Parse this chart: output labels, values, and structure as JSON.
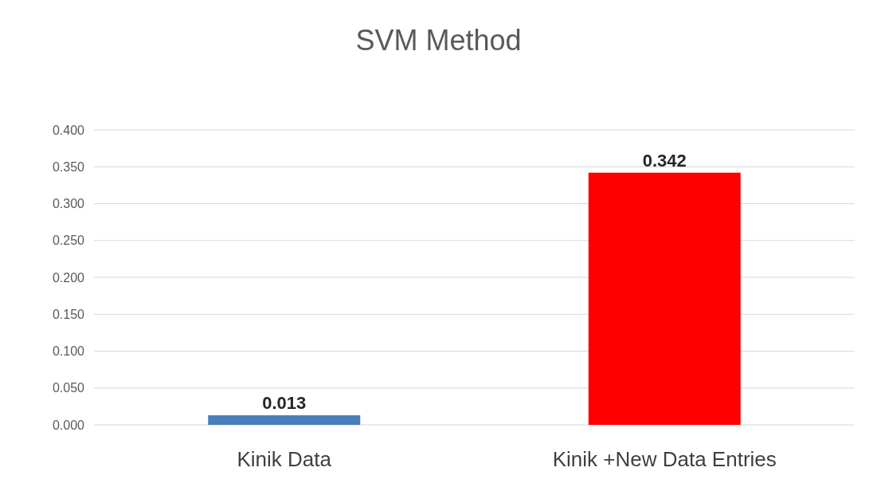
{
  "chart_data": {
    "type": "bar",
    "title": "SVM Method",
    "categories": [
      "Kinik Data",
      "Kinik +New Data Entries"
    ],
    "values": [
      0.013,
      0.342
    ],
    "colors": [
      "#4a7ebb",
      "#ff0000"
    ],
    "ylim": [
      0,
      0.4
    ],
    "yticks": [
      {
        "value": 0,
        "label": "0.000"
      },
      {
        "value": 0.05,
        "label": "0.050"
      },
      {
        "value": 0.1,
        "label": "0.100"
      },
      {
        "value": 0.15,
        "label": "0.150"
      },
      {
        "value": 0.2,
        "label": "0.200"
      },
      {
        "value": 0.25,
        "label": "0.250"
      },
      {
        "value": 0.3,
        "label": "0.300"
      },
      {
        "value": 0.35,
        "label": "0.350"
      },
      {
        "value": 0.4,
        "label": "0.400"
      }
    ],
    "grid": "y",
    "data_labels": true
  }
}
